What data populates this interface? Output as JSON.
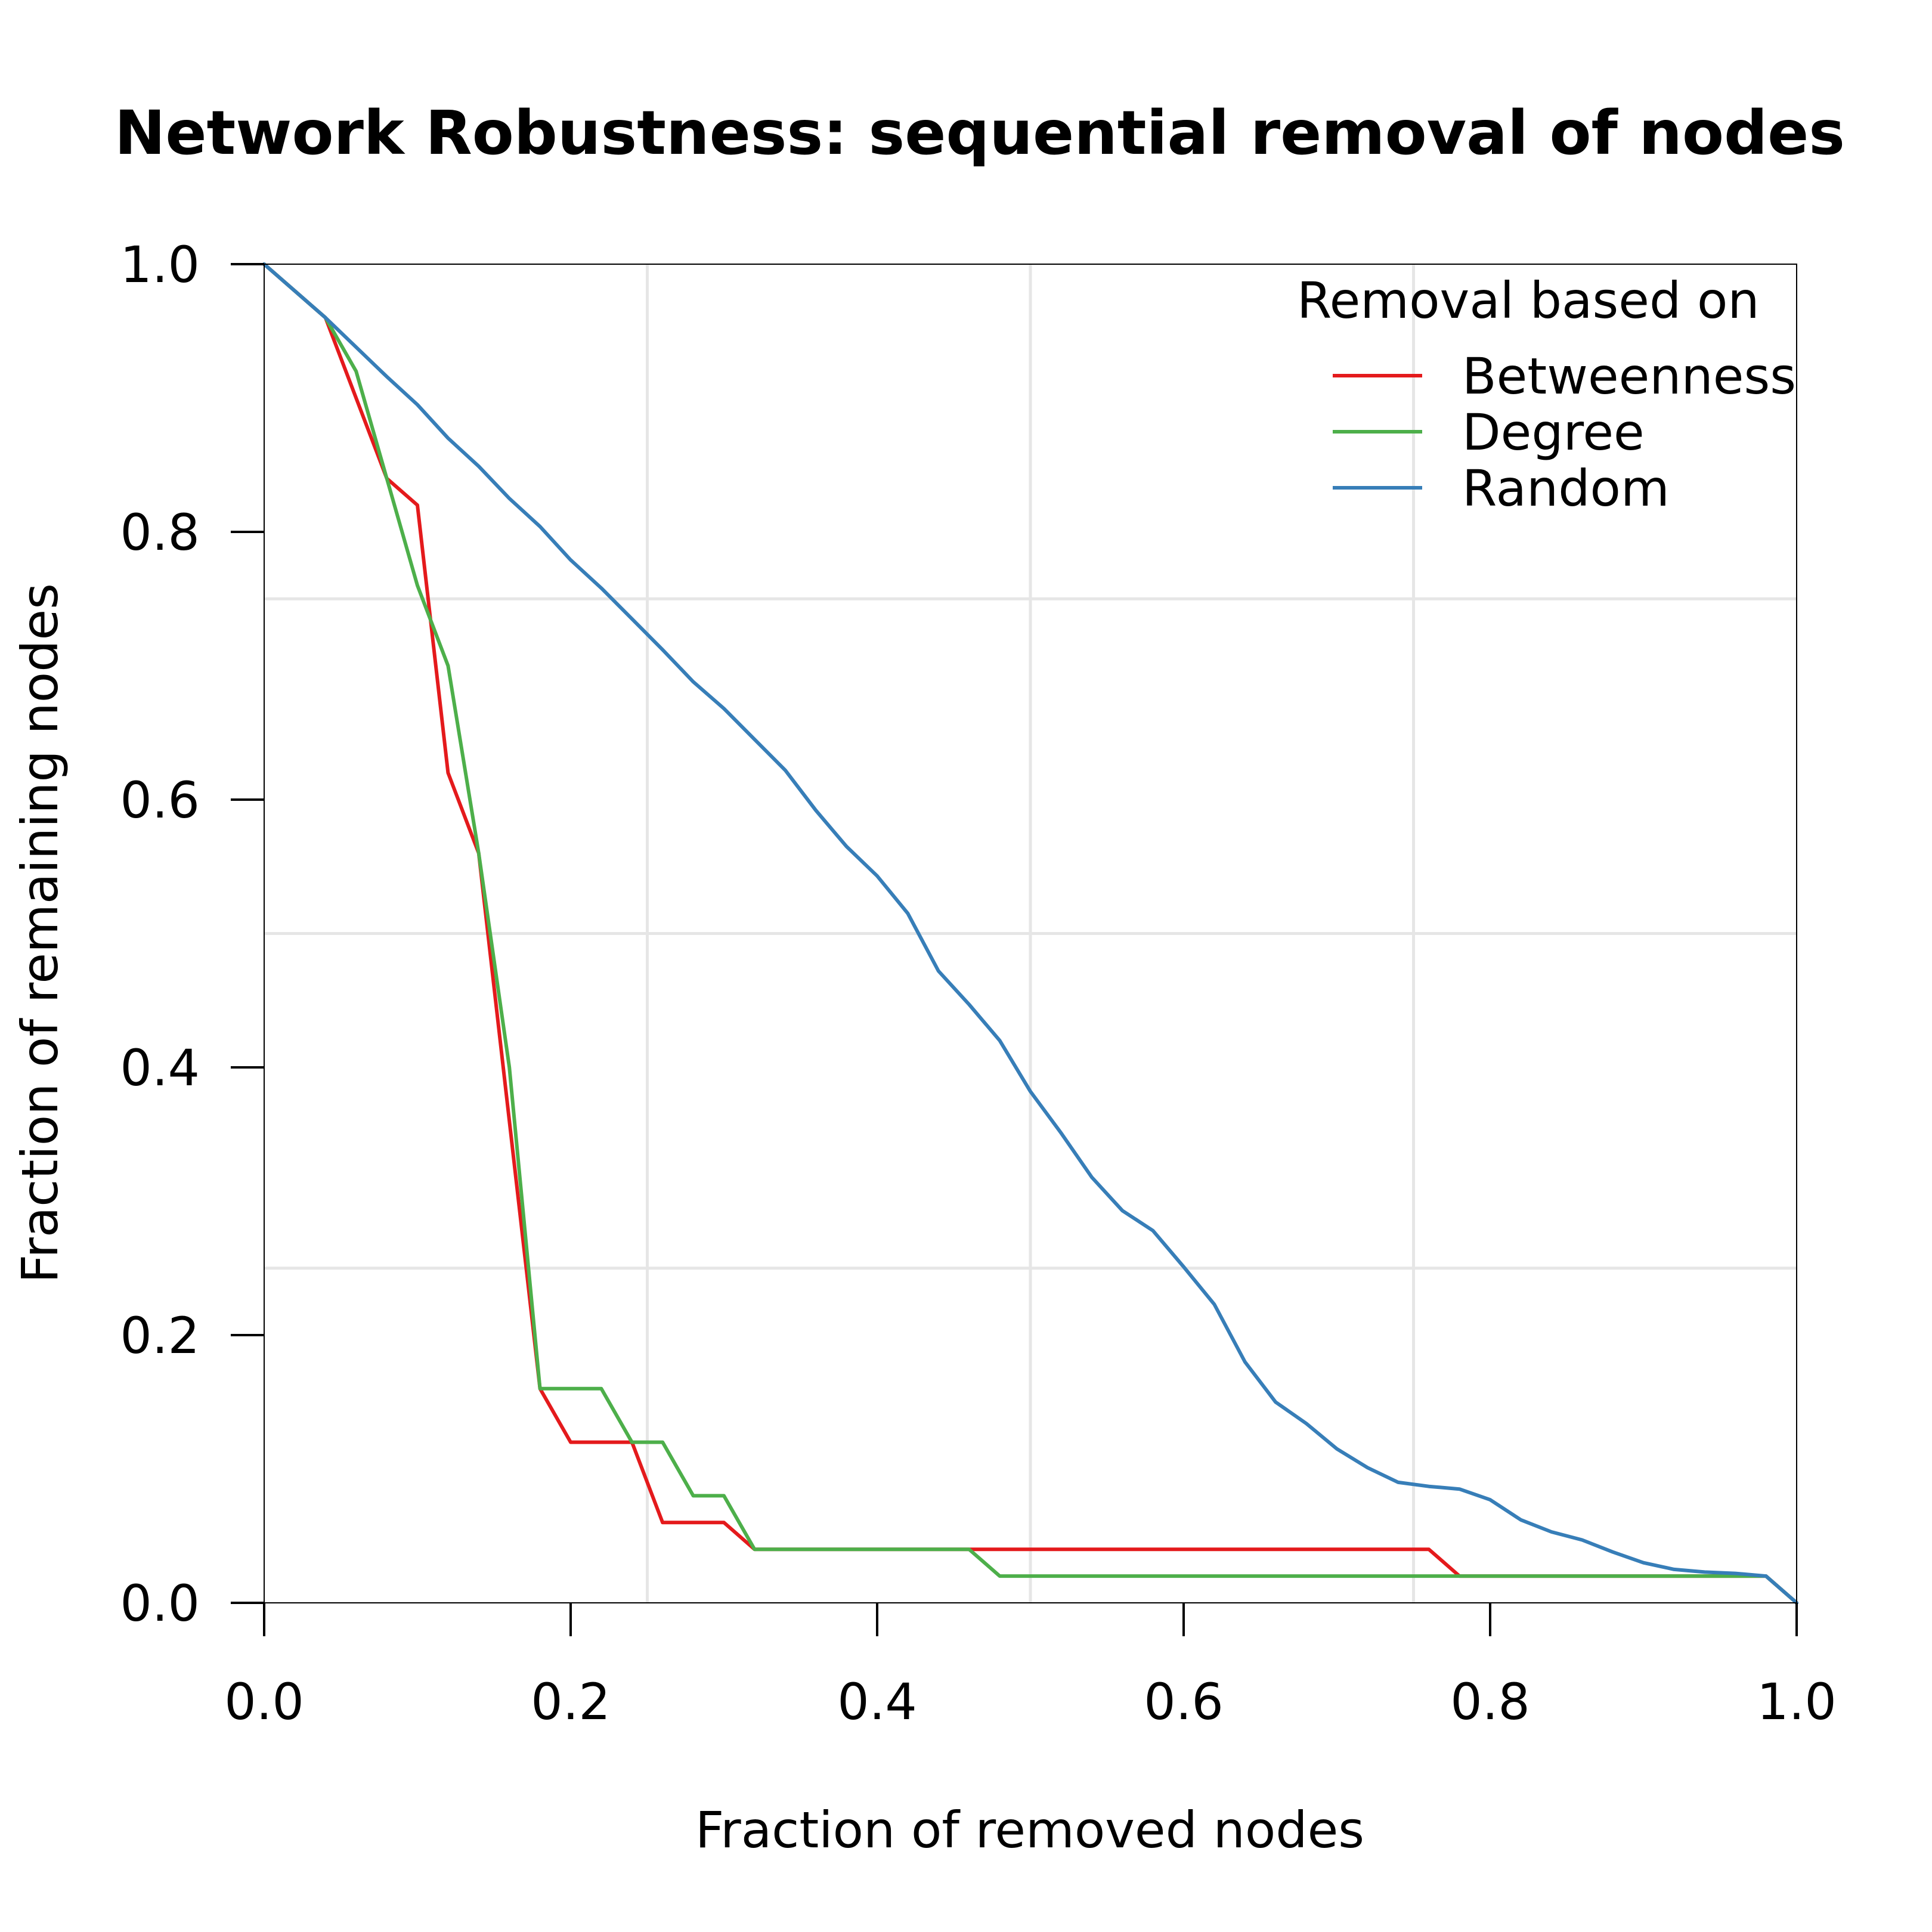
{
  "chart_data": {
    "type": "line",
    "title": "Network Robustness: sequential removal of nodes",
    "xlabel": "Fraction of removed nodes",
    "ylabel": "Fraction of remaining nodes",
    "xlim": [
      0,
      1
    ],
    "ylim": [
      0,
      1
    ],
    "xticks": [
      "0.0",
      "0.2",
      "0.4",
      "0.6",
      "0.8",
      "1.0"
    ],
    "yticks": [
      "0.0",
      "0.2",
      "0.4",
      "0.6",
      "0.8",
      "1.0"
    ],
    "grid": true,
    "legend": {
      "title": "Removal based on",
      "placement": "top-right"
    },
    "series": [
      {
        "name": "Betweenness",
        "color": "#e41a1c",
        "points": [
          [
            0,
            1.0
          ],
          [
            0.04,
            0.96
          ],
          [
            0.08,
            0.84
          ],
          [
            0.1,
            0.82
          ],
          [
            0.12,
            0.62
          ],
          [
            0.14,
            0.56
          ],
          [
            0.16,
            0.36
          ],
          [
            0.18,
            0.16
          ],
          [
            0.2,
            0.12
          ],
          [
            0.22,
            0.12
          ],
          [
            0.24,
            0.12
          ],
          [
            0.26,
            0.06
          ],
          [
            0.28,
            0.06
          ],
          [
            0.3,
            0.06
          ],
          [
            0.32,
            0.04
          ],
          [
            0.46,
            0.04
          ],
          [
            0.76,
            0.04
          ],
          [
            0.78,
            0.02
          ],
          [
            0.98,
            0.02
          ],
          [
            1.0,
            0.0
          ]
        ]
      },
      {
        "name": "Degree",
        "color": "#4daf4a",
        "points": [
          [
            0,
            1.0
          ],
          [
            0.04,
            0.96
          ],
          [
            0.06,
            0.92
          ],
          [
            0.08,
            0.84
          ],
          [
            0.1,
            0.76
          ],
          [
            0.12,
            0.7
          ],
          [
            0.14,
            0.56
          ],
          [
            0.16,
            0.4
          ],
          [
            0.18,
            0.16
          ],
          [
            0.2,
            0.16
          ],
          [
            0.22,
            0.16
          ],
          [
            0.24,
            0.12
          ],
          [
            0.26,
            0.12
          ],
          [
            0.28,
            0.08
          ],
          [
            0.3,
            0.08
          ],
          [
            0.32,
            0.04
          ],
          [
            0.46,
            0.04
          ],
          [
            0.48,
            0.02
          ],
          [
            0.98,
            0.02
          ],
          [
            1.0,
            0.0
          ]
        ]
      },
      {
        "name": "Random",
        "color": "#377eb8",
        "points": [
          [
            0,
            1.0
          ],
          [
            0.04,
            0.96
          ],
          [
            0.06,
            0.938
          ],
          [
            0.08,
            0.916
          ],
          [
            0.1,
            0.895
          ],
          [
            0.12,
            0.87
          ],
          [
            0.14,
            0.849
          ],
          [
            0.16,
            0.825
          ],
          [
            0.18,
            0.804
          ],
          [
            0.2,
            0.779
          ],
          [
            0.22,
            0.758
          ],
          [
            0.24,
            0.735
          ],
          [
            0.26,
            0.712
          ],
          [
            0.28,
            0.688
          ],
          [
            0.3,
            0.668
          ],
          [
            0.32,
            0.645
          ],
          [
            0.34,
            0.622
          ],
          [
            0.36,
            0.592
          ],
          [
            0.38,
            0.565
          ],
          [
            0.4,
            0.543
          ],
          [
            0.42,
            0.515
          ],
          [
            0.44,
            0.472
          ],
          [
            0.46,
            0.447
          ],
          [
            0.48,
            0.42
          ],
          [
            0.5,
            0.382
          ],
          [
            0.52,
            0.351
          ],
          [
            0.54,
            0.318
          ],
          [
            0.56,
            0.293
          ],
          [
            0.58,
            0.278
          ],
          [
            0.6,
            0.251
          ],
          [
            0.62,
            0.223
          ],
          [
            0.64,
            0.18
          ],
          [
            0.66,
            0.15
          ],
          [
            0.68,
            0.134
          ],
          [
            0.7,
            0.115
          ],
          [
            0.72,
            0.101
          ],
          [
            0.74,
            0.09
          ],
          [
            0.76,
            0.087
          ],
          [
            0.78,
            0.085
          ],
          [
            0.8,
            0.077
          ],
          [
            0.82,
            0.062
          ],
          [
            0.84,
            0.053
          ],
          [
            0.86,
            0.047
          ],
          [
            0.88,
            0.038
          ],
          [
            0.9,
            0.03
          ],
          [
            0.92,
            0.025
          ],
          [
            0.94,
            0.023
          ],
          [
            0.96,
            0.022
          ],
          [
            0.98,
            0.02
          ],
          [
            1.0,
            0.0
          ]
        ]
      }
    ]
  }
}
